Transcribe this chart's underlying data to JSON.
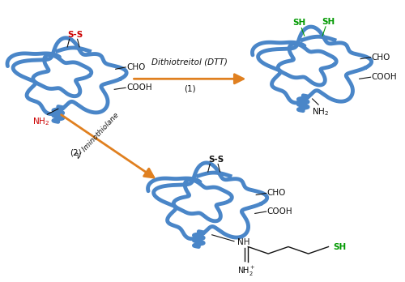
{
  "bg_color": "#ffffff",
  "protein_color": "#4a86c8",
  "protein_lw": 3.5,
  "arrow_color": "#e08020",
  "ss_color_red": "#cc0000",
  "sh_color": "#009900",
  "text_color": "#111111",
  "label_fontsize": 7.5,
  "small_fontsize": 6.5,
  "arrow_label1": "Dithiotreitol (DTT)",
  "arrow_label1b": "(1)",
  "arrow_label2": "2- Iminothiolane",
  "arrow_label2b": "(2)",
  "p1": [
    0.17,
    0.72
  ],
  "p2": [
    0.78,
    0.76
  ],
  "p3": [
    0.52,
    0.27
  ]
}
